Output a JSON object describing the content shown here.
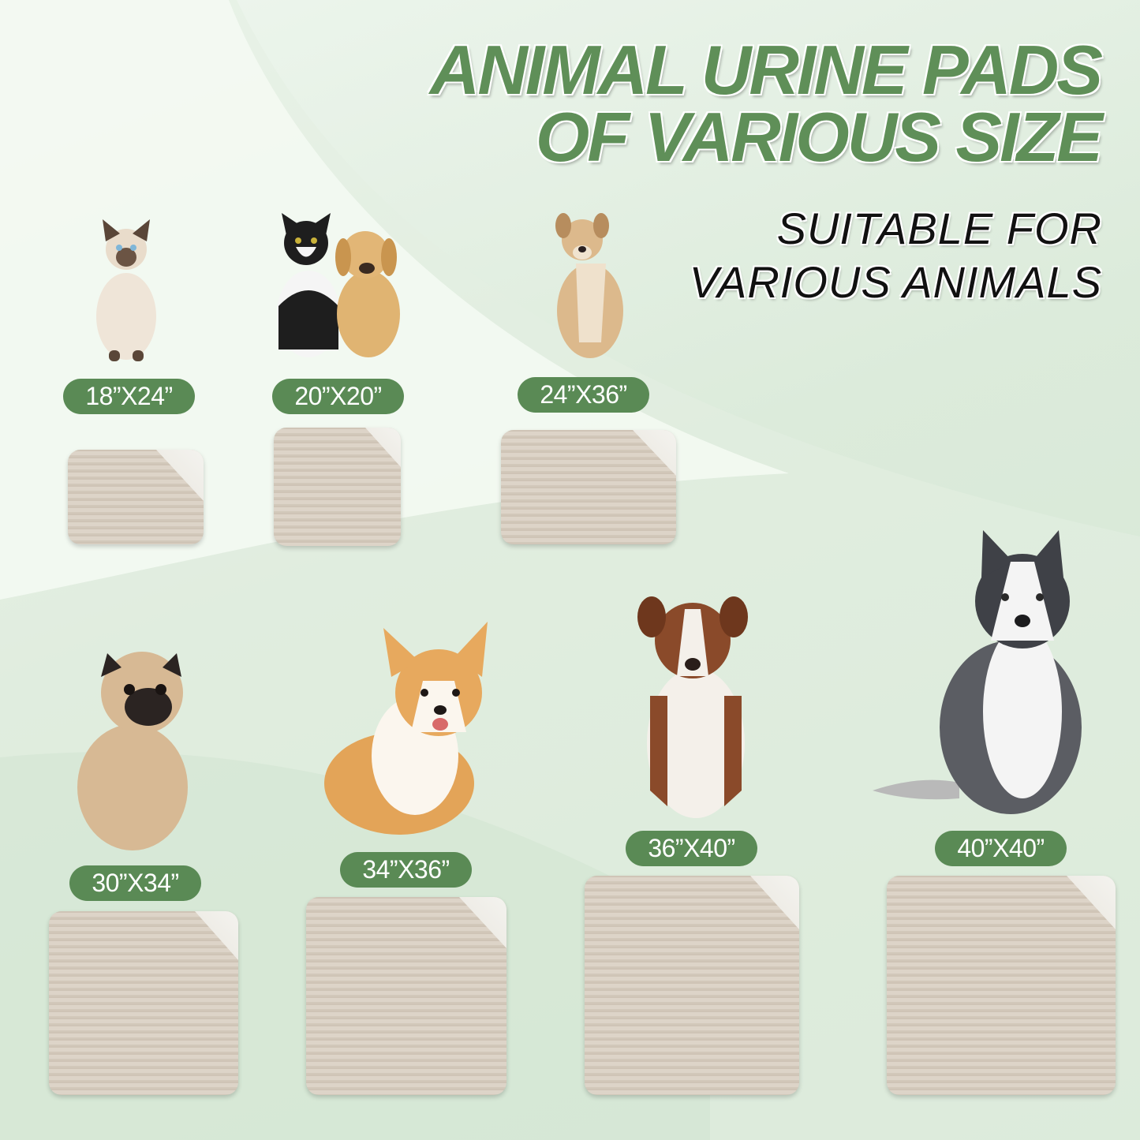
{
  "header": {
    "title_line1": "ANIMAL URINE PADS",
    "title_line2": "OF VARIOUS SIZE",
    "subtitle_line1": "SUITABLE FOR",
    "subtitle_line2": "VARIOUS ANIMALS"
  },
  "colors": {
    "accent": "#5a8a55",
    "title": "#5f8f58",
    "pad": "#d9cfc2",
    "pad_back": "#f4f3ef"
  },
  "sizes": [
    {
      "label": "18”X24”",
      "animal": "siamese-cat"
    },
    {
      "label": "20”X20”",
      "animal": "cat-and-puppy"
    },
    {
      "label": "24”X36”",
      "animal": "tan-dog"
    },
    {
      "label": "30”X34”",
      "animal": "pug"
    },
    {
      "label": "34”X36”",
      "animal": "corgi"
    },
    {
      "label": "36”X40”",
      "animal": "australian-shepherd"
    },
    {
      "label": "40”X40”",
      "animal": "husky"
    }
  ]
}
